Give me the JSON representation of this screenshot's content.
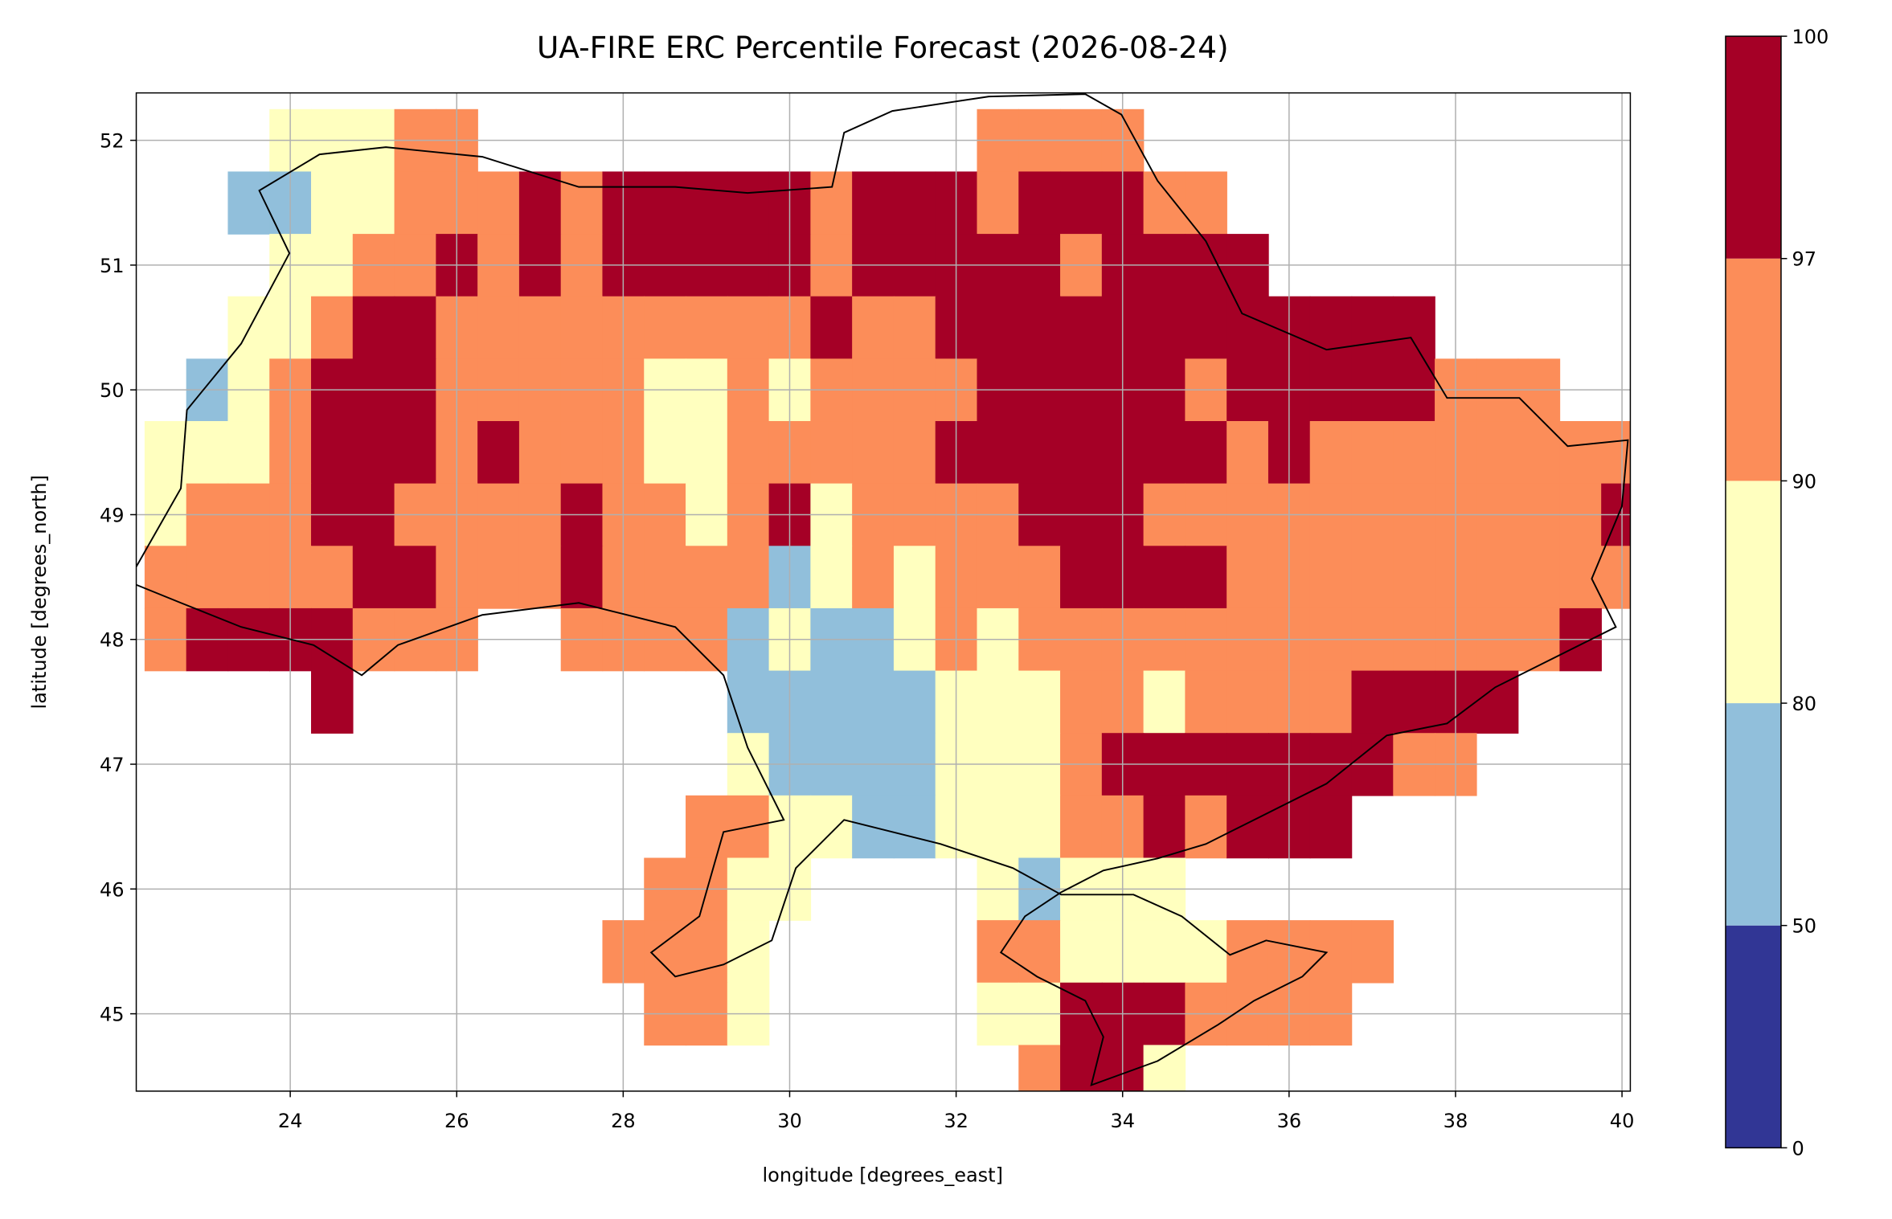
{
  "chart_data": {
    "type": "raster",
    "title": "UA-FIRE ERC Percentile Forecast (2026-08-24)",
    "x_label": "longitude [degrees_east]",
    "y_label": "latitude [degrees_north]",
    "xlim": [
      22.15,
      40.1
    ],
    "ylim": [
      44.38,
      52.38
    ],
    "xticks": [
      24,
      26,
      28,
      30,
      32,
      34,
      36,
      38,
      40
    ],
    "yticks": [
      45,
      46,
      47,
      48,
      49,
      50,
      51,
      52
    ],
    "grid": true,
    "colorbar": {
      "boundaries": [
        0,
        50,
        80,
        90,
        97,
        100
      ],
      "colors": [
        "#313695",
        "#91bfdb",
        "#ffffbf",
        "#fc8d59",
        "#a50026"
      ]
    },
    "lons": [
      22.5,
      23,
      23.5,
      24,
      24.5,
      25,
      25.5,
      26,
      26.5,
      27,
      27.5,
      28,
      28.5,
      29,
      29.5,
      30,
      30.5,
      31,
      31.5,
      32,
      32.5,
      33,
      33.5,
      34,
      34.5,
      35,
      35.5,
      36,
      36.5,
      37,
      37.5,
      38,
      38.5,
      39,
      39.5,
      40
    ],
    "lats": [
      52,
      51.5,
      51,
      50.5,
      50,
      49.5,
      49,
      48.5,
      48,
      47.5,
      47,
      46.5,
      46,
      45.5,
      45,
      44.5
    ],
    "values": [
      [
        null,
        null,
        null,
        85,
        85,
        85,
        94,
        94,
        null,
        null,
        null,
        null,
        null,
        null,
        null,
        null,
        null,
        null,
        null,
        null,
        94,
        94,
        94,
        94,
        null,
        null,
        null,
        null,
        null,
        null,
        null,
        null,
        null,
        null,
        null,
        null
      ],
      [
        null,
        null,
        70,
        70,
        85,
        85,
        94,
        94,
        94,
        98,
        94,
        98,
        98,
        98,
        98,
        98,
        94,
        98,
        98,
        98,
        94,
        98,
        98,
        98,
        94,
        94,
        null,
        null,
        null,
        null,
        null,
        null,
        null,
        null,
        null,
        null
      ],
      [
        null,
        null,
        null,
        85,
        85,
        94,
        94,
        98,
        94,
        98,
        94,
        98,
        98,
        98,
        98,
        98,
        94,
        98,
        98,
        98,
        98,
        98,
        94,
        98,
        98,
        98,
        98,
        null,
        null,
        null,
        null,
        null,
        null,
        null,
        null,
        null
      ],
      [
        null,
        null,
        85,
        85,
        94,
        98,
        98,
        94,
        94,
        94,
        94,
        94,
        94,
        94,
        94,
        94,
        98,
        94,
        94,
        98,
        98,
        98,
        98,
        98,
        98,
        98,
        98,
        98,
        98,
        98,
        98,
        null,
        null,
        null,
        null,
        null
      ],
      [
        null,
        70,
        85,
        94,
        98,
        98,
        98,
        94,
        94,
        94,
        94,
        94,
        85,
        85,
        94,
        85,
        94,
        94,
        94,
        94,
        98,
        98,
        98,
        98,
        98,
        94,
        98,
        98,
        98,
        98,
        98,
        94,
        94,
        94,
        null,
        null
      ],
      [
        85,
        85,
        85,
        94,
        98,
        98,
        98,
        94,
        98,
        94,
        94,
        94,
        85,
        85,
        94,
        94,
        94,
        94,
        94,
        98,
        98,
        98,
        98,
        98,
        98,
        98,
        94,
        98,
        94,
        94,
        94,
        94,
        94,
        94,
        94,
        94
      ],
      [
        85,
        94,
        94,
        94,
        98,
        98,
        94,
        94,
        94,
        94,
        98,
        94,
        94,
        85,
        94,
        98,
        85,
        94,
        94,
        94,
        94,
        98,
        98,
        98,
        94,
        94,
        94,
        94,
        94,
        94,
        94,
        94,
        94,
        94,
        94,
        98
      ],
      [
        94,
        94,
        94,
        94,
        94,
        98,
        98,
        94,
        94,
        94,
        98,
        94,
        94,
        94,
        94,
        70,
        85,
        94,
        85,
        94,
        94,
        94,
        98,
        98,
        98,
        98,
        94,
        94,
        94,
        94,
        94,
        94,
        94,
        94,
        94,
        94
      ],
      [
        94,
        98,
        98,
        98,
        98,
        94,
        94,
        94,
        null,
        null,
        94,
        94,
        94,
        94,
        70,
        85,
        70,
        70,
        85,
        94,
        85,
        94,
        94,
        94,
        94,
        94,
        94,
        94,
        94,
        94,
        94,
        94,
        94,
        94,
        98,
        null
      ],
      [
        null,
        null,
        null,
        null,
        98,
        null,
        null,
        null,
        null,
        null,
        null,
        null,
        null,
        null,
        70,
        70,
        70,
        70,
        70,
        85,
        85,
        85,
        94,
        94,
        85,
        94,
        94,
        94,
        94,
        98,
        98,
        98,
        98,
        null,
        null,
        null
      ],
      [
        null,
        null,
        null,
        null,
        null,
        null,
        null,
        null,
        null,
        null,
        null,
        null,
        null,
        null,
        85,
        70,
        70,
        70,
        70,
        85,
        85,
        85,
        94,
        98,
        98,
        98,
        98,
        98,
        98,
        98,
        94,
        94,
        null,
        null,
        null,
        null
      ],
      [
        null,
        null,
        null,
        null,
        null,
        null,
        null,
        null,
        null,
        null,
        null,
        null,
        null,
        94,
        94,
        85,
        85,
        70,
        70,
        85,
        85,
        85,
        94,
        94,
        98,
        94,
        98,
        98,
        98,
        null,
        null,
        null,
        null,
        null,
        null,
        null
      ],
      [
        null,
        null,
        null,
        null,
        null,
        null,
        null,
        null,
        null,
        null,
        null,
        null,
        94,
        94,
        85,
        85,
        null,
        null,
        null,
        null,
        85,
        70,
        85,
        85,
        85,
        null,
        null,
        null,
        null,
        null,
        null,
        null,
        null,
        null,
        null,
        null
      ],
      [
        null,
        null,
        null,
        null,
        null,
        null,
        null,
        null,
        null,
        null,
        null,
        94,
        94,
        94,
        85,
        null,
        null,
        null,
        null,
        null,
        94,
        94,
        85,
        85,
        85,
        85,
        94,
        94,
        94,
        94,
        null,
        null,
        null,
        null,
        null,
        null
      ],
      [
        null,
        null,
        null,
        null,
        null,
        null,
        null,
        null,
        null,
        null,
        null,
        null,
        94,
        94,
        85,
        null,
        null,
        null,
        null,
        null,
        85,
        85,
        98,
        98,
        98,
        94,
        94,
        94,
        94,
        null,
        null,
        null,
        null,
        null,
        null,
        null
      ],
      [
        null,
        null,
        null,
        null,
        null,
        null,
        null,
        null,
        null,
        null,
        null,
        null,
        null,
        null,
        null,
        null,
        null,
        null,
        null,
        null,
        null,
        94,
        98,
        98,
        85,
        null,
        null,
        null,
        null,
        null,
        null,
        null,
        null,
        null,
        null,
        null
      ]
    ]
  }
}
